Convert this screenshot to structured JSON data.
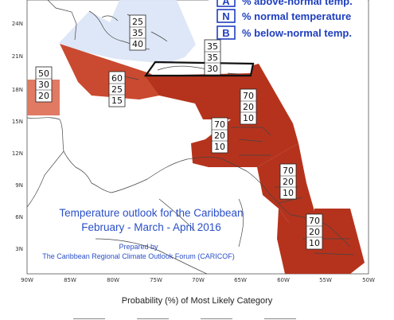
{
  "map": {
    "lon_ticks": [
      "90W",
      "85W",
      "80W",
      "75W",
      "70W",
      "65W",
      "60W",
      "55W",
      "50W"
    ],
    "lat_ticks": [
      "24N",
      "21N",
      "18N",
      "15N",
      "12N",
      "9N",
      "6N",
      "3N"
    ],
    "colors": {
      "above_normal_dark": "#b5331d",
      "above_normal_mid": "#c94a30",
      "above_normal_light": "#e07a63",
      "normal_light_blue": "#dce6f7",
      "ocean": "#ffffff",
      "coast": "#444444"
    }
  },
  "legend": {
    "items": [
      {
        "key": "A",
        "text": "% above-normal temp."
      },
      {
        "key": "N",
        "text": "% normal temperature"
      },
      {
        "key": "B",
        "text": "% below-normal temp."
      }
    ]
  },
  "labels": [
    {
      "above": "25",
      "normal": "35",
      "below": "40"
    },
    {
      "above": "35",
      "normal": "35",
      "below": "30"
    },
    {
      "above": "50",
      "normal": "30",
      "below": "20"
    },
    {
      "above": "60",
      "normal": "25",
      "below": "15"
    },
    {
      "above": "70",
      "normal": "20",
      "below": "10"
    },
    {
      "above": "70",
      "normal": "20",
      "below": "10"
    },
    {
      "above": "70",
      "normal": "20",
      "below": "10"
    },
    {
      "above": "70",
      "normal": "20",
      "below": "10"
    }
  ],
  "title": {
    "line1": "Temperature outlook for the Caribbean",
    "line2": "February - March - April 2016"
  },
  "credit": {
    "line1": "Prepared by",
    "line2": "The Caribbean Regional Climate Outlook Forum (CARICOF)"
  },
  "footer": {
    "probability_label": "Probability (%) of Most Likely Category"
  }
}
